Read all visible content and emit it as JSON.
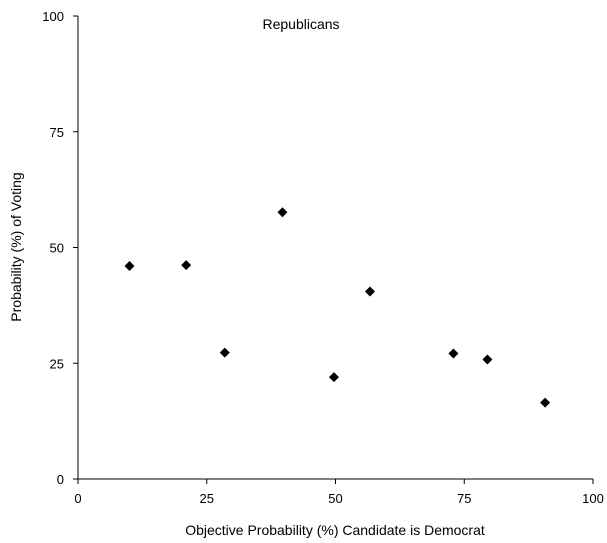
{
  "chart_data": {
    "type": "scatter",
    "title": "Republicans",
    "xlabel": "Objective Probability (%) Candidate is Democrat",
    "ylabel": "Probability (%) of Voting",
    "xlim": [
      0,
      100
    ],
    "ylim": [
      0,
      100
    ],
    "xticks": [
      "0",
      "25",
      "50",
      "75",
      "100"
    ],
    "yticks": [
      "0",
      "25",
      "50",
      "75",
      "100"
    ],
    "grid": false,
    "legend": "none",
    "marker": "diamond",
    "marker_color": "#000000",
    "series": [
      {
        "points": [
          {
            "x": 10,
            "y": 46
          },
          {
            "x": 21,
            "y": 46.2
          },
          {
            "x": 28.5,
            "y": 27.3
          },
          {
            "x": 39.7,
            "y": 57.6
          },
          {
            "x": 49.7,
            "y": 22
          },
          {
            "x": 56.7,
            "y": 40.5
          },
          {
            "x": 72.9,
            "y": 27.1
          },
          {
            "x": 79.5,
            "y": 25.8
          },
          {
            "x": 90.7,
            "y": 16.5
          }
        ]
      }
    ]
  }
}
